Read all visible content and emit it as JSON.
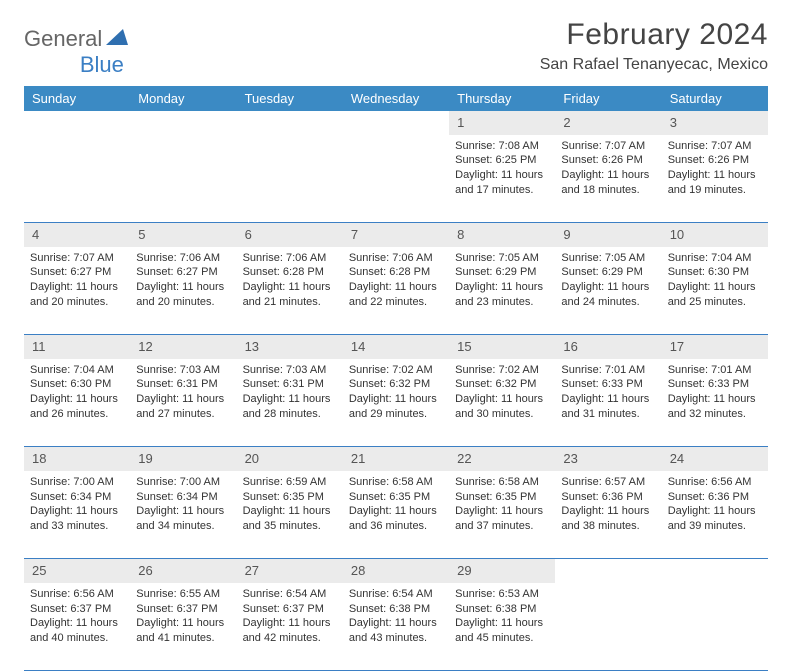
{
  "logo": {
    "general": "General",
    "blue": "Blue"
  },
  "title": "February 2024",
  "location": "San Rafael Tenanyecac, Mexico",
  "weekdays": [
    "Sunday",
    "Monday",
    "Tuesday",
    "Wednesday",
    "Thursday",
    "Friday",
    "Saturday"
  ],
  "header_bg": "#3b8ac4",
  "accent_color": "#3b7fc4",
  "daynum_bg": "#ebebeb",
  "weeks": [
    {
      "nums": [
        "",
        "",
        "",
        "",
        "1",
        "2",
        "3"
      ],
      "details": [
        null,
        null,
        null,
        null,
        {
          "sunrise": "Sunrise: 7:08 AM",
          "sunset": "Sunset: 6:25 PM",
          "day1": "Daylight: 11 hours",
          "day2": "and 17 minutes."
        },
        {
          "sunrise": "Sunrise: 7:07 AM",
          "sunset": "Sunset: 6:26 PM",
          "day1": "Daylight: 11 hours",
          "day2": "and 18 minutes."
        },
        {
          "sunrise": "Sunrise: 7:07 AM",
          "sunset": "Sunset: 6:26 PM",
          "day1": "Daylight: 11 hours",
          "day2": "and 19 minutes."
        }
      ]
    },
    {
      "nums": [
        "4",
        "5",
        "6",
        "7",
        "8",
        "9",
        "10"
      ],
      "details": [
        {
          "sunrise": "Sunrise: 7:07 AM",
          "sunset": "Sunset: 6:27 PM",
          "day1": "Daylight: 11 hours",
          "day2": "and 20 minutes."
        },
        {
          "sunrise": "Sunrise: 7:06 AM",
          "sunset": "Sunset: 6:27 PM",
          "day1": "Daylight: 11 hours",
          "day2": "and 20 minutes."
        },
        {
          "sunrise": "Sunrise: 7:06 AM",
          "sunset": "Sunset: 6:28 PM",
          "day1": "Daylight: 11 hours",
          "day2": "and 21 minutes."
        },
        {
          "sunrise": "Sunrise: 7:06 AM",
          "sunset": "Sunset: 6:28 PM",
          "day1": "Daylight: 11 hours",
          "day2": "and 22 minutes."
        },
        {
          "sunrise": "Sunrise: 7:05 AM",
          "sunset": "Sunset: 6:29 PM",
          "day1": "Daylight: 11 hours",
          "day2": "and 23 minutes."
        },
        {
          "sunrise": "Sunrise: 7:05 AM",
          "sunset": "Sunset: 6:29 PM",
          "day1": "Daylight: 11 hours",
          "day2": "and 24 minutes."
        },
        {
          "sunrise": "Sunrise: 7:04 AM",
          "sunset": "Sunset: 6:30 PM",
          "day1": "Daylight: 11 hours",
          "day2": "and 25 minutes."
        }
      ]
    },
    {
      "nums": [
        "11",
        "12",
        "13",
        "14",
        "15",
        "16",
        "17"
      ],
      "details": [
        {
          "sunrise": "Sunrise: 7:04 AM",
          "sunset": "Sunset: 6:30 PM",
          "day1": "Daylight: 11 hours",
          "day2": "and 26 minutes."
        },
        {
          "sunrise": "Sunrise: 7:03 AM",
          "sunset": "Sunset: 6:31 PM",
          "day1": "Daylight: 11 hours",
          "day2": "and 27 minutes."
        },
        {
          "sunrise": "Sunrise: 7:03 AM",
          "sunset": "Sunset: 6:31 PM",
          "day1": "Daylight: 11 hours",
          "day2": "and 28 minutes."
        },
        {
          "sunrise": "Sunrise: 7:02 AM",
          "sunset": "Sunset: 6:32 PM",
          "day1": "Daylight: 11 hours",
          "day2": "and 29 minutes."
        },
        {
          "sunrise": "Sunrise: 7:02 AM",
          "sunset": "Sunset: 6:32 PM",
          "day1": "Daylight: 11 hours",
          "day2": "and 30 minutes."
        },
        {
          "sunrise": "Sunrise: 7:01 AM",
          "sunset": "Sunset: 6:33 PM",
          "day1": "Daylight: 11 hours",
          "day2": "and 31 minutes."
        },
        {
          "sunrise": "Sunrise: 7:01 AM",
          "sunset": "Sunset: 6:33 PM",
          "day1": "Daylight: 11 hours",
          "day2": "and 32 minutes."
        }
      ]
    },
    {
      "nums": [
        "18",
        "19",
        "20",
        "21",
        "22",
        "23",
        "24"
      ],
      "details": [
        {
          "sunrise": "Sunrise: 7:00 AM",
          "sunset": "Sunset: 6:34 PM",
          "day1": "Daylight: 11 hours",
          "day2": "and 33 minutes."
        },
        {
          "sunrise": "Sunrise: 7:00 AM",
          "sunset": "Sunset: 6:34 PM",
          "day1": "Daylight: 11 hours",
          "day2": "and 34 minutes."
        },
        {
          "sunrise": "Sunrise: 6:59 AM",
          "sunset": "Sunset: 6:35 PM",
          "day1": "Daylight: 11 hours",
          "day2": "and 35 minutes."
        },
        {
          "sunrise": "Sunrise: 6:58 AM",
          "sunset": "Sunset: 6:35 PM",
          "day1": "Daylight: 11 hours",
          "day2": "and 36 minutes."
        },
        {
          "sunrise": "Sunrise: 6:58 AM",
          "sunset": "Sunset: 6:35 PM",
          "day1": "Daylight: 11 hours",
          "day2": "and 37 minutes."
        },
        {
          "sunrise": "Sunrise: 6:57 AM",
          "sunset": "Sunset: 6:36 PM",
          "day1": "Daylight: 11 hours",
          "day2": "and 38 minutes."
        },
        {
          "sunrise": "Sunrise: 6:56 AM",
          "sunset": "Sunset: 6:36 PM",
          "day1": "Daylight: 11 hours",
          "day2": "and 39 minutes."
        }
      ]
    },
    {
      "nums": [
        "25",
        "26",
        "27",
        "28",
        "29",
        "",
        ""
      ],
      "details": [
        {
          "sunrise": "Sunrise: 6:56 AM",
          "sunset": "Sunset: 6:37 PM",
          "day1": "Daylight: 11 hours",
          "day2": "and 40 minutes."
        },
        {
          "sunrise": "Sunrise: 6:55 AM",
          "sunset": "Sunset: 6:37 PM",
          "day1": "Daylight: 11 hours",
          "day2": "and 41 minutes."
        },
        {
          "sunrise": "Sunrise: 6:54 AM",
          "sunset": "Sunset: 6:37 PM",
          "day1": "Daylight: 11 hours",
          "day2": "and 42 minutes."
        },
        {
          "sunrise": "Sunrise: 6:54 AM",
          "sunset": "Sunset: 6:38 PM",
          "day1": "Daylight: 11 hours",
          "day2": "and 43 minutes."
        },
        {
          "sunrise": "Sunrise: 6:53 AM",
          "sunset": "Sunset: 6:38 PM",
          "day1": "Daylight: 11 hours",
          "day2": "and 45 minutes."
        },
        null,
        null
      ]
    }
  ]
}
